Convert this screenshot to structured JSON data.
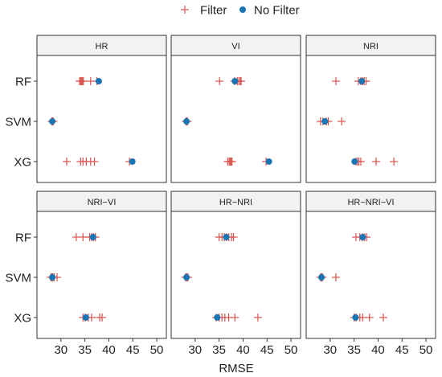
{
  "chart_data": {
    "type": "scatter",
    "title": "",
    "xlabel": "RMSE",
    "ylabel": "",
    "xlim": [
      25,
      52
    ],
    "x_ticks": [
      30,
      35,
      40,
      45,
      50
    ],
    "x_tick_labels": [
      "30",
      "35",
      "40",
      "45",
      "50"
    ],
    "categories": [
      "RF",
      "SVM",
      "XG"
    ],
    "legend": {
      "position": "top",
      "entries": [
        {
          "label": "Filter",
          "marker": "cross",
          "color": "#d9534f"
        },
        {
          "label": "No Filter",
          "marker": "dot",
          "color": "#1a75b4"
        }
      ]
    },
    "grid": false,
    "panels": [
      {
        "name": "HR",
        "filter": {
          "RF": [
            33.9,
            34.1,
            34.3,
            34.5,
            34.7,
            36.2,
            37.5
          ],
          "SVM": [
            28.1,
            28.2,
            28.3,
            28.4
          ],
          "XG": [
            31.2,
            34.1,
            34.6,
            35.3,
            36.2,
            37.0,
            44.3
          ]
        },
        "no_filter": {
          "RF": 37.9,
          "SVM": 28.2,
          "XG": 44.9
        }
      },
      {
        "name": "VI",
        "filter": {
          "RF": [
            35.1,
            38.2,
            38.8,
            39.1,
            39.4,
            39.6
          ],
          "SVM": [
            28.1,
            28.2,
            28.3,
            28.4
          ],
          "XG": [
            36.8,
            37.1,
            37.3,
            37.5,
            37.7,
            44.8
          ]
        },
        "no_filter": {
          "RF": 38.3,
          "SVM": 28.2,
          "XG": 45.4
        }
      },
      {
        "name": "NRI",
        "filter": {
          "RF": [
            31.2,
            35.9,
            36.4,
            36.8,
            37.1,
            37.5
          ],
          "SVM": [
            28.0,
            28.5,
            29.2,
            29.6,
            32.4
          ],
          "XG": [
            35.4,
            35.7,
            36.0,
            36.4,
            39.6,
            43.3
          ]
        },
        "no_filter": {
          "RF": 36.6,
          "SVM": 28.9,
          "XG": 35.1
        }
      },
      {
        "name": "NRI−VI",
        "filter": {
          "RF": [
            33.2,
            34.6,
            36.0,
            36.4,
            36.8,
            37.2
          ],
          "SVM": [
            27.9,
            28.1,
            28.3,
            28.6,
            29.2
          ],
          "XG": [
            34.6,
            35.1,
            35.7,
            36.4,
            38.1,
            38.6
          ]
        },
        "no_filter": {
          "RF": 36.7,
          "SVM": 28.2,
          "XG": 35.2
        }
      },
      {
        "name": "HR−NRI",
        "filter": {
          "RF": [
            35.0,
            35.6,
            36.1,
            36.5,
            37.0,
            37.6,
            38.0
          ],
          "SVM": [
            28.0,
            28.1,
            28.2,
            28.4,
            28.5
          ],
          "XG": [
            34.4,
            35.0,
            35.6,
            36.2,
            37.0,
            38.3,
            43.1
          ]
        },
        "no_filter": {
          "RF": 36.5,
          "SVM": 28.2,
          "XG": 34.6
        }
      },
      {
        "name": "HR−NRI−VI",
        "filter": {
          "RF": [
            35.4,
            36.2,
            36.8,
            37.2,
            37.6
          ],
          "SVM": [
            28.0,
            28.2,
            28.4,
            31.2
          ],
          "XG": [
            35.0,
            35.4,
            36.2,
            36.8,
            38.2,
            41.1
          ]
        },
        "no_filter": {
          "RF": 36.8,
          "SVM": 28.2,
          "XG": 35.3
        }
      }
    ]
  }
}
